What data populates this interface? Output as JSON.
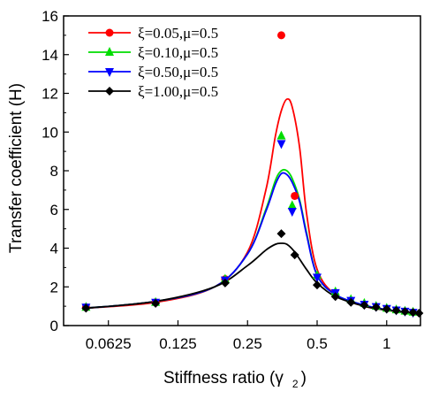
{
  "chart_data": {
    "type": "line",
    "xlabel": "Stiffness ratio (γ",
    "xlabel_subscript": "2",
    "xlabel_close": ")",
    "ylabel": "Transfer coefficient (H)",
    "x_scale": "log2",
    "xlim": [
      0.04,
      1.4
    ],
    "ylim": [
      0,
      16
    ],
    "x_ticks": [
      {
        "value": 0.0625,
        "label": "0.0625"
      },
      {
        "value": 0.125,
        "label": "0.125"
      },
      {
        "value": 0.25,
        "label": "0.25"
      },
      {
        "value": 0.5,
        "label": "0.5"
      },
      {
        "value": 1,
        "label": "1"
      }
    ],
    "y_ticks": [
      {
        "value": 0,
        "label": "0"
      },
      {
        "value": 2,
        "label": "2"
      },
      {
        "value": 4,
        "label": "4"
      },
      {
        "value": 6,
        "label": "6"
      },
      {
        "value": 8,
        "label": "8"
      },
      {
        "value": 10,
        "label": "10"
      },
      {
        "value": 12,
        "label": "12"
      },
      {
        "value": 14,
        "label": "14"
      },
      {
        "value": 16,
        "label": "16"
      }
    ],
    "grid": false,
    "legend_position": "top-left",
    "series": [
      {
        "name": "ξ=0.05,μ=0.5",
        "color": "#ff0000",
        "marker": "circle",
        "curve": {
          "x": [
            0.05,
            0.1,
            0.18,
            0.25,
            0.3,
            0.33,
            0.35,
            0.37,
            0.39,
            0.42,
            0.45,
            0.5,
            0.6,
            0.8,
            1.0,
            1.2,
            1.35
          ],
          "y": [
            0.9,
            1.2,
            2.0,
            3.8,
            7.0,
            9.8,
            11.1,
            11.7,
            11.3,
            9.2,
            5.8,
            2.9,
            1.6,
            1.0,
            0.8,
            0.68,
            0.62
          ]
        },
        "points": {
          "x": [
            0.05,
            0.1,
            0.2,
            0.35,
            0.4
          ],
          "y": [
            0.95,
            1.2,
            2.4,
            15.0,
            6.7
          ]
        }
      },
      {
        "name": "ξ=0.10,μ=0.5",
        "color": "#00dd00",
        "marker": "triangle-up",
        "curve": {
          "x": [
            0.05,
            0.1,
            0.18,
            0.25,
            0.3,
            0.33,
            0.35,
            0.37,
            0.39,
            0.42,
            0.45,
            0.5,
            0.6,
            0.8,
            1.0,
            1.2,
            1.35
          ],
          "y": [
            0.9,
            1.25,
            2.0,
            3.7,
            6.0,
            7.5,
            8.0,
            8.0,
            7.6,
            6.5,
            4.8,
            2.6,
            1.6,
            1.05,
            0.82,
            0.7,
            0.64
          ]
        },
        "points": {
          "x": [
            0.05,
            0.1,
            0.2,
            0.35,
            0.39,
            0.5,
            0.6,
            0.7,
            0.8,
            0.9,
            1.0,
            1.1,
            1.2,
            1.3
          ],
          "y": [
            0.95,
            1.2,
            2.4,
            9.8,
            6.2,
            2.6,
            1.75,
            1.35,
            1.15,
            1.0,
            0.9,
            0.82,
            0.75,
            0.7
          ]
        }
      },
      {
        "name": "ξ=0.50,μ=0.5",
        "color": "#0000ff",
        "marker": "triangle-down",
        "curve": {
          "x": [
            0.05,
            0.1,
            0.18,
            0.25,
            0.3,
            0.33,
            0.35,
            0.37,
            0.39,
            0.42,
            0.45,
            0.5,
            0.6,
            0.8,
            1.0,
            1.2,
            1.35
          ],
          "y": [
            0.9,
            1.25,
            2.0,
            3.7,
            5.9,
            7.3,
            7.85,
            7.8,
            7.4,
            6.4,
            4.7,
            2.6,
            1.6,
            1.05,
            0.82,
            0.7,
            0.64
          ]
        },
        "points": {
          "x": [
            0.05,
            0.1,
            0.2,
            0.35,
            0.39,
            0.5,
            0.6,
            0.7,
            0.8,
            0.9,
            1.0,
            1.1,
            1.2,
            1.3
          ],
          "y": [
            0.95,
            1.2,
            2.35,
            9.4,
            5.9,
            2.5,
            1.7,
            1.3,
            1.1,
            0.98,
            0.88,
            0.8,
            0.74,
            0.68
          ]
        }
      },
      {
        "name": "ξ=1.00,μ=0.5",
        "color": "#000000",
        "marker": "diamond",
        "curve": {
          "x": [
            0.05,
            0.1,
            0.18,
            0.25,
            0.3,
            0.33,
            0.35,
            0.37,
            0.4,
            0.45,
            0.5,
            0.6,
            0.8,
            1.0,
            1.2,
            1.35
          ],
          "y": [
            0.9,
            1.25,
            2.0,
            3.1,
            3.9,
            4.2,
            4.25,
            4.2,
            3.8,
            2.9,
            2.2,
            1.5,
            1.0,
            0.8,
            0.68,
            0.62
          ]
        },
        "points": {
          "x": [
            0.05,
            0.1,
            0.2,
            0.35,
            0.4,
            0.5,
            0.6,
            0.7,
            0.8,
            0.9,
            1.0,
            1.1,
            1.2,
            1.3,
            1.38
          ],
          "y": [
            0.9,
            1.15,
            2.2,
            4.75,
            3.65,
            2.1,
            1.5,
            1.2,
            1.05,
            0.95,
            0.85,
            0.78,
            0.72,
            0.68,
            0.64
          ]
        }
      }
    ]
  }
}
